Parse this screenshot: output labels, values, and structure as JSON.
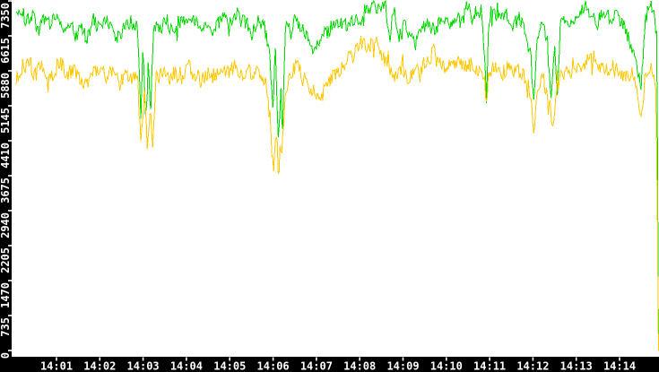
{
  "colors": {
    "plot_background": "#ffffff",
    "axis_band": "#000000",
    "tick_mark": "#ffffff",
    "tick_label": "#ffffff",
    "green_line": "#00d800",
    "yellow_line": "#ffc800"
  },
  "chart_data": {
    "type": "line",
    "title": "",
    "xlabel": "",
    "ylabel": "",
    "grid": false,
    "legend": "none",
    "x_axis": {
      "unit": "time",
      "range_minutes_after_1400": [
        0,
        14.92
      ],
      "tick_minutes": [
        1,
        2,
        3,
        4,
        5,
        6,
        7,
        8,
        9,
        10,
        11,
        12,
        13,
        14
      ],
      "tick_labels": [
        "14:01",
        "14:02",
        "14:03",
        "14:04",
        "14:05",
        "14:06",
        "14:07",
        "14:08",
        "14:09",
        "14:10",
        "14:11",
        "14:12",
        "14:13",
        "14:14"
      ]
    },
    "y_axis": {
      "range": [
        0,
        7350
      ],
      "tick_values": [
        7350,
        6615,
        5880,
        5145,
        4410,
        3675,
        2940,
        2205,
        1470,
        735,
        0
      ],
      "tick_labels": [
        "7350",
        "6615",
        "5880",
        "5145",
        "4410",
        "3675",
        "2940",
        "2205",
        "1470",
        "735",
        "0"
      ]
    },
    "noise": {
      "seed": 20,
      "green_amplitude": 150,
      "yellow_amplitude": 175,
      "spike_chance": 0.07,
      "spike_factor": 2.1,
      "sample_step_minutes": 0.021
    },
    "series": [
      {
        "name": "green-series",
        "color_key": "green_line",
        "keypoints": [
          [
            0.07,
            7050
          ],
          [
            0.2,
            7150
          ],
          [
            0.3,
            6900
          ],
          [
            0.45,
            7050
          ],
          [
            0.6,
            6750
          ],
          [
            0.7,
            7000
          ],
          [
            0.85,
            6850
          ],
          [
            1.0,
            7100
          ],
          [
            1.15,
            6800
          ],
          [
            1.3,
            6950
          ],
          [
            1.45,
            6600
          ],
          [
            1.6,
            6800
          ],
          [
            1.7,
            6500
          ],
          [
            1.85,
            6950
          ],
          [
            2.0,
            6750
          ],
          [
            2.15,
            6950
          ],
          [
            2.3,
            6700
          ],
          [
            2.45,
            6550
          ],
          [
            2.6,
            6900
          ],
          [
            2.75,
            6750
          ],
          [
            2.87,
            6850
          ],
          [
            2.95,
            5050
          ],
          [
            3.0,
            6450
          ],
          [
            3.06,
            4900
          ],
          [
            3.12,
            6200
          ],
          [
            3.17,
            4950
          ],
          [
            3.25,
            6850
          ],
          [
            3.4,
            6750
          ],
          [
            3.55,
            6950
          ],
          [
            3.7,
            6650
          ],
          [
            3.85,
            6850
          ],
          [
            4.0,
            6950
          ],
          [
            4.15,
            7050
          ],
          [
            4.3,
            6700
          ],
          [
            4.45,
            6900
          ],
          [
            4.6,
            6750
          ],
          [
            4.75,
            6900
          ],
          [
            4.9,
            7000
          ],
          [
            5.05,
            6850
          ],
          [
            5.2,
            7150
          ],
          [
            5.35,
            6900
          ],
          [
            5.5,
            6750
          ],
          [
            5.65,
            6950
          ],
          [
            5.8,
            6800
          ],
          [
            5.92,
            6300
          ],
          [
            6.0,
            5100
          ],
          [
            6.05,
            6450
          ],
          [
            6.12,
            4420
          ],
          [
            6.18,
            5600
          ],
          [
            6.22,
            4450
          ],
          [
            6.28,
            6880
          ],
          [
            6.4,
            6800
          ],
          [
            6.55,
            6950
          ],
          [
            6.7,
            6700
          ],
          [
            6.85,
            6450
          ],
          [
            6.95,
            6300
          ],
          [
            7.1,
            6550
          ],
          [
            7.25,
            6700
          ],
          [
            7.4,
            6850
          ],
          [
            7.55,
            6950
          ],
          [
            7.7,
            6800
          ],
          [
            7.85,
            7000
          ],
          [
            8.0,
            6900
          ],
          [
            8.15,
            7100
          ],
          [
            8.3,
            7300
          ],
          [
            8.45,
            7150
          ],
          [
            8.6,
            7300
          ],
          [
            8.7,
            6600
          ],
          [
            8.8,
            7250
          ],
          [
            8.9,
            6550
          ],
          [
            9.0,
            6900
          ],
          [
            9.15,
            6650
          ],
          [
            9.3,
            6450
          ],
          [
            9.45,
            6800
          ],
          [
            9.6,
            6900
          ],
          [
            9.75,
            6750
          ],
          [
            9.9,
            6950
          ],
          [
            10.05,
            6800
          ],
          [
            10.2,
            7000
          ],
          [
            10.35,
            6900
          ],
          [
            10.5,
            7200
          ],
          [
            10.65,
            7050
          ],
          [
            10.8,
            7150
          ],
          [
            10.88,
            6300
          ],
          [
            10.93,
            5250
          ],
          [
            10.98,
            6900
          ],
          [
            11.1,
            7150
          ],
          [
            11.25,
            6950
          ],
          [
            11.4,
            7050
          ],
          [
            11.55,
            6850
          ],
          [
            11.7,
            7000
          ],
          [
            11.85,
            6700
          ],
          [
            11.95,
            6200
          ],
          [
            12.02,
            5250
          ],
          [
            12.1,
            6550
          ],
          [
            12.2,
            6800
          ],
          [
            12.32,
            6600
          ],
          [
            12.42,
            5200
          ],
          [
            12.5,
            6400
          ],
          [
            12.57,
            5400
          ],
          [
            12.63,
            6850
          ],
          [
            12.75,
            6950
          ],
          [
            12.9,
            6800
          ],
          [
            13.05,
            7050
          ],
          [
            13.2,
            7250
          ],
          [
            13.35,
            7050
          ],
          [
            13.5,
            6950
          ],
          [
            13.65,
            7150
          ],
          [
            13.8,
            6950
          ],
          [
            13.95,
            7100
          ],
          [
            14.1,
            6800
          ],
          [
            14.25,
            6450
          ],
          [
            14.4,
            5900
          ],
          [
            14.5,
            5650
          ],
          [
            14.6,
            7000
          ],
          [
            14.72,
            7250
          ],
          [
            14.8,
            7050
          ],
          [
            14.86,
            6600
          ],
          [
            14.885,
            3000
          ],
          [
            14.9,
            0
          ]
        ]
      },
      {
        "name": "yellow-series",
        "color_key": "yellow_line",
        "keypoints": [
          [
            0.07,
            5750
          ],
          [
            0.2,
            5950
          ],
          [
            0.35,
            6100
          ],
          [
            0.5,
            5800
          ],
          [
            0.65,
            6000
          ],
          [
            0.8,
            5550
          ],
          [
            0.95,
            5900
          ],
          [
            1.1,
            6050
          ],
          [
            1.25,
            5800
          ],
          [
            1.4,
            5950
          ],
          [
            1.55,
            5700
          ],
          [
            1.7,
            5600
          ],
          [
            1.85,
            5850
          ],
          [
            2.0,
            5950
          ],
          [
            2.15,
            5750
          ],
          [
            2.3,
            5900
          ],
          [
            2.45,
            5550
          ],
          [
            2.6,
            5800
          ],
          [
            2.75,
            5700
          ],
          [
            2.87,
            5800
          ],
          [
            2.95,
            4250
          ],
          [
            3.03,
            5450
          ],
          [
            3.1,
            4300
          ],
          [
            3.17,
            5100
          ],
          [
            3.22,
            4400
          ],
          [
            3.3,
            5700
          ],
          [
            3.45,
            5850
          ],
          [
            3.6,
            5700
          ],
          [
            3.75,
            5900
          ],
          [
            3.9,
            5750
          ],
          [
            4.05,
            5950
          ],
          [
            4.2,
            5800
          ],
          [
            4.35,
            5650
          ],
          [
            4.5,
            5850
          ],
          [
            4.65,
            5750
          ],
          [
            4.8,
            5900
          ],
          [
            4.95,
            5800
          ],
          [
            5.1,
            5950
          ],
          [
            5.25,
            5750
          ],
          [
            5.4,
            5900
          ],
          [
            5.55,
            5800
          ],
          [
            5.7,
            5850
          ],
          [
            5.83,
            5600
          ],
          [
            5.93,
            4900
          ],
          [
            6.0,
            3750
          ],
          [
            6.07,
            4500
          ],
          [
            6.13,
            3720
          ],
          [
            6.2,
            4300
          ],
          [
            6.28,
            5200
          ],
          [
            6.4,
            5800
          ],
          [
            6.55,
            6000
          ],
          [
            6.7,
            5700
          ],
          [
            6.85,
            5500
          ],
          [
            7.0,
            5450
          ],
          [
            7.15,
            5400
          ],
          [
            7.3,
            5650
          ],
          [
            7.45,
            5850
          ],
          [
            7.6,
            6000
          ],
          [
            7.75,
            6150
          ],
          [
            7.9,
            6250
          ],
          [
            8.05,
            6500
          ],
          [
            8.2,
            6350
          ],
          [
            8.35,
            6550
          ],
          [
            8.5,
            6200
          ],
          [
            8.65,
            5950
          ],
          [
            8.8,
            5800
          ],
          [
            8.95,
            5950
          ],
          [
            9.1,
            5700
          ],
          [
            9.25,
            5850
          ],
          [
            9.4,
            5950
          ],
          [
            9.55,
            6100
          ],
          [
            9.7,
            6250
          ],
          [
            9.85,
            6000
          ],
          [
            10.0,
            5850
          ],
          [
            10.15,
            5950
          ],
          [
            10.3,
            6100
          ],
          [
            10.45,
            5950
          ],
          [
            10.6,
            6050
          ],
          [
            10.75,
            5900
          ],
          [
            10.88,
            5700
          ],
          [
            10.93,
            5150
          ],
          [
            10.98,
            5850
          ],
          [
            11.1,
            5950
          ],
          [
            11.25,
            5800
          ],
          [
            11.4,
            5950
          ],
          [
            11.55,
            5800
          ],
          [
            11.7,
            5900
          ],
          [
            11.85,
            5650
          ],
          [
            11.95,
            5400
          ],
          [
            12.02,
            4390
          ],
          [
            12.1,
            5600
          ],
          [
            12.2,
            5750
          ],
          [
            12.3,
            5450
          ],
          [
            12.4,
            5200
          ],
          [
            12.47,
            4520
          ],
          [
            12.55,
            5500
          ],
          [
            12.65,
            5800
          ],
          [
            12.8,
            5950
          ],
          [
            12.95,
            5800
          ],
          [
            13.1,
            5950
          ],
          [
            13.25,
            6050
          ],
          [
            13.4,
            6150
          ],
          [
            13.55,
            6000
          ],
          [
            13.7,
            5900
          ],
          [
            13.85,
            5950
          ],
          [
            14.0,
            5800
          ],
          [
            14.15,
            5700
          ],
          [
            14.3,
            5800
          ],
          [
            14.42,
            5280
          ],
          [
            14.5,
            4860
          ],
          [
            14.6,
            5800
          ],
          [
            14.7,
            5950
          ],
          [
            14.78,
            5750
          ],
          [
            14.84,
            5600
          ],
          [
            14.875,
            2500
          ],
          [
            14.9,
            0
          ]
        ]
      }
    ]
  }
}
